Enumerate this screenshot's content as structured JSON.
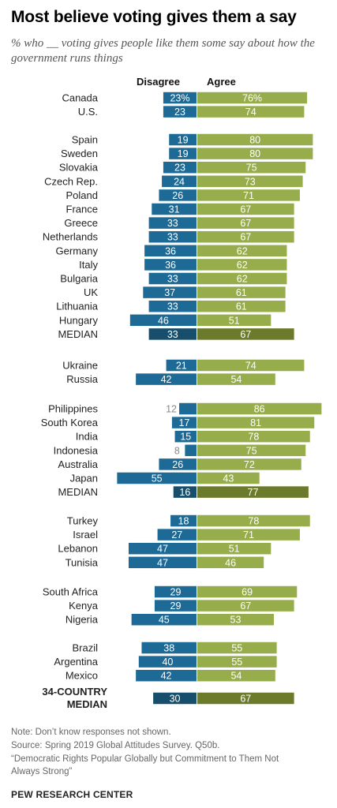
{
  "header": {
    "title": "Most believe voting gives them a say",
    "subtitle": "% who __ voting gives people like them some say about how the government runs things"
  },
  "colors": {
    "disagree": "#1d6a96",
    "agree": "#97ad4b",
    "disagree_median": "#174e6b",
    "agree_median": "#6c7a2c",
    "value_text": "#ffffff",
    "outside_value_text": "#888888"
  },
  "chart_data": {
    "type": "bar",
    "orientation": "horizontal-diverging",
    "legend": [
      "Disagree",
      "Agree"
    ],
    "series": [
      {
        "name": "Disagree",
        "values": [
          23,
          23,
          19,
          19,
          23,
          24,
          26,
          31,
          33,
          33,
          36,
          36,
          33,
          37,
          33,
          46,
          33,
          21,
          42,
          12,
          17,
          15,
          8,
          26,
          55,
          16,
          18,
          27,
          47,
          47,
          29,
          29,
          45,
          38,
          40,
          42,
          30
        ]
      },
      {
        "name": "Agree",
        "values": [
          76,
          74,
          80,
          80,
          75,
          73,
          71,
          67,
          67,
          67,
          62,
          62,
          62,
          61,
          61,
          51,
          67,
          74,
          54,
          86,
          81,
          78,
          75,
          72,
          43,
          77,
          78,
          71,
          51,
          46,
          69,
          67,
          53,
          55,
          55,
          54,
          67
        ]
      }
    ],
    "rows": [
      {
        "label": "Canada",
        "disagree": 23,
        "agree": 76,
        "disagree_label": "23%",
        "agree_label": "76%"
      },
      {
        "label": "U.S.",
        "disagree": 23,
        "agree": 74
      },
      {
        "label": "Spain",
        "disagree": 19,
        "agree": 80
      },
      {
        "label": "Sweden",
        "disagree": 19,
        "agree": 80
      },
      {
        "label": "Slovakia",
        "disagree": 23,
        "agree": 75
      },
      {
        "label": "Czech Rep.",
        "disagree": 24,
        "agree": 73
      },
      {
        "label": "Poland",
        "disagree": 26,
        "agree": 71
      },
      {
        "label": "France",
        "disagree": 31,
        "agree": 67
      },
      {
        "label": "Greece",
        "disagree": 33,
        "agree": 67
      },
      {
        "label": "Netherlands",
        "disagree": 33,
        "agree": 67
      },
      {
        "label": "Germany",
        "disagree": 36,
        "agree": 62
      },
      {
        "label": "Italy",
        "disagree": 36,
        "agree": 62
      },
      {
        "label": "Bulgaria",
        "disagree": 33,
        "agree": 62
      },
      {
        "label": "UK",
        "disagree": 37,
        "agree": 61
      },
      {
        "label": "Lithuania",
        "disagree": 33,
        "agree": 61
      },
      {
        "label": "Hungary",
        "disagree": 46,
        "agree": 51
      },
      {
        "label": "MEDIAN",
        "disagree": 33,
        "agree": 67,
        "median": true
      },
      {
        "label": "Ukraine",
        "disagree": 21,
        "agree": 74
      },
      {
        "label": "Russia",
        "disagree": 42,
        "agree": 54
      },
      {
        "label": "Philippines",
        "disagree": 12,
        "agree": 86
      },
      {
        "label": "South Korea",
        "disagree": 17,
        "agree": 81
      },
      {
        "label": "India",
        "disagree": 15,
        "agree": 78
      },
      {
        "label": "Indonesia",
        "disagree": 8,
        "agree": 75
      },
      {
        "label": "Australia",
        "disagree": 26,
        "agree": 72
      },
      {
        "label": "Japan",
        "disagree": 55,
        "agree": 43
      },
      {
        "label": "MEDIAN",
        "disagree": 16,
        "agree": 77,
        "median": true
      },
      {
        "label": "Turkey",
        "disagree": 18,
        "agree": 78
      },
      {
        "label": "Israel",
        "disagree": 27,
        "agree": 71
      },
      {
        "label": "Lebanon",
        "disagree": 47,
        "agree": 51
      },
      {
        "label": "Tunisia",
        "disagree": 47,
        "agree": 46
      },
      {
        "label": "South Africa",
        "disagree": 29,
        "agree": 69
      },
      {
        "label": "Kenya",
        "disagree": 29,
        "agree": 67
      },
      {
        "label": "Nigeria",
        "disagree": 45,
        "agree": 53
      },
      {
        "label": "Brazil",
        "disagree": 38,
        "agree": 55
      },
      {
        "label": "Argentina",
        "disagree": 40,
        "agree": 55
      },
      {
        "label": "Mexico",
        "disagree": 42,
        "agree": 54
      },
      {
        "label": "34-COUNTRY MEDIAN",
        "label_lines": [
          "34-COUNTRY",
          "MEDIAN"
        ],
        "disagree": 30,
        "agree": 67,
        "median": true,
        "overall": true
      }
    ]
  },
  "footer": {
    "note": "Note: Don’t know responses not shown.",
    "source": "Source: Spring 2019 Global Attitudes Survey. Q50b.",
    "report_line1": "“Democratic Rights Popular Globally but Commitment to Them Not",
    "report_line2": "Always Strong”",
    "brand": "PEW RESEARCH CENTER"
  }
}
